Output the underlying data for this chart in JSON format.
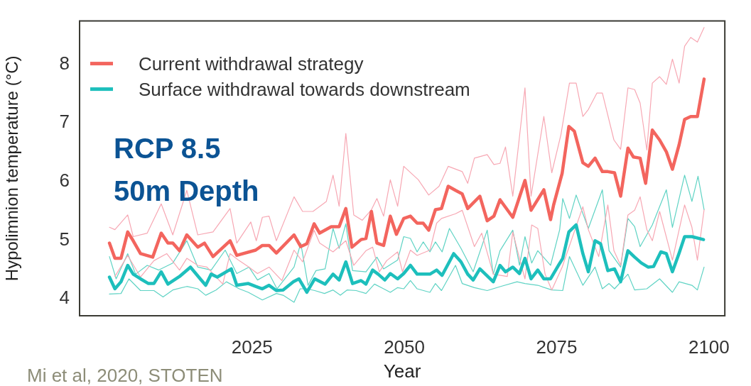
{
  "chart_data": {
    "type": "line",
    "xlabel": "Year",
    "ylabel": "Hypolimnion temperature (°C)",
    "xlim": [
      1996.7,
      2102.6
    ],
    "ylim": [
      3.71,
      8.74
    ],
    "xticks": [
      2025,
      2050,
      2075,
      2100
    ],
    "yticks": [
      4,
      5,
      6,
      7,
      8
    ],
    "grid": false,
    "legend": "top left",
    "marker": "none",
    "line_style": "solid",
    "annotations": [
      "RCP 8.5",
      "50m Depth",
      "Mi et al, 2020, STOTEN"
    ],
    "series": [
      {
        "color": "#f7a7b3",
        "x": [
          2001.6,
          2002.5,
          2004.6,
          2005.5,
          2007.8,
          2010.1,
          2012,
          2014.3,
          2016.1,
          2018.6,
          2021.4,
          2022.5,
          2024.8,
          2025.7,
          2026.7,
          2027.8,
          2029,
          2031.9,
          2033.3,
          2035,
          2037.2,
          2038.3,
          2039.3,
          2040.4,
          2041.7,
          2043.1,
          2044.6,
          2045.5,
          2046.6,
          2047.7,
          2048.9,
          2049.9,
          2052.3,
          2054,
          2055.7,
          2057.2,
          2059.5,
          2060.4,
          2061.5,
          2063.6,
          2064.7,
          2065.7,
          2066.6,
          2067.8,
          2069.8,
          2070.8,
          2072.9,
          2074.2,
          2075.7,
          2077.1,
          2078.2,
          2079.3,
          2080.2,
          2081.6,
          2082.5,
          2084.4,
          2085.5,
          2086.7,
          2087.8,
          2088.7,
          2089.8,
          2090.7,
          2091.9,
          2093,
          2094,
          2095.1,
          2096,
          2097,
          2098.1,
          2099.2
        ],
        "values": [
          5.22,
          5.18,
          5.43,
          5.06,
          5.12,
          5.62,
          5.09,
          5.85,
          5.09,
          5.14,
          5.54,
          4.95,
          5.31,
          4.99,
          5.39,
          5.41,
          4.99,
          5.74,
          5.49,
          5.49,
          5.66,
          6.11,
          5.58,
          6.82,
          5.43,
          5.34,
          5.52,
          5.71,
          5.41,
          6.03,
          5.58,
          6.26,
          6.03,
          5.77,
          5.92,
          6.26,
          6.17,
          5.97,
          6.4,
          6.46,
          6.29,
          6.31,
          6.59,
          5.75,
          7.6,
          5.75,
          7.11,
          6.15,
          6.8,
          7.68,
          7.68,
          7.11,
          7.23,
          7.51,
          7.51,
          6.71,
          6.55,
          7.6,
          7.57,
          7.34,
          6.54,
          7.68,
          7.79,
          7.66,
          8.09,
          7.68,
          8.31,
          8.46,
          8.38,
          8.63
        ]
      },
      {
        "color": "#f7a7b3",
        "x": [
          2002.5,
          2004.6,
          2006.7,
          2008.9,
          2011,
          2013.1,
          2014.3,
          2016.1,
          2017.6,
          2020.2,
          2021.4,
          2022.9,
          2024.5,
          2025.9,
          2027.8,
          2029.9,
          2031.9,
          2033.3,
          2035.2,
          2036.1,
          2038.3,
          2040.4,
          2041.7,
          2043.7,
          2044.8,
          2045.9,
          2047.1,
          2048.9,
          2049.7,
          2051,
          2052.1,
          2054.2,
          2055.3,
          2056.1,
          2058.4,
          2059.5,
          2061.5,
          2062.7,
          2064.6,
          2066.9,
          2067.8,
          2068.9,
          2069.8,
          2070.9,
          2071.9,
          2073.1,
          2074.2,
          2075.9,
          2079.3,
          2080.2,
          2081.9,
          2083.4,
          2084.4,
          2085.5,
          2086.7,
          2087.8,
          2088.7,
          2089.8,
          2090.7,
          2091.9,
          2094,
          2096,
          2097.2,
          2098.1,
          2099.2
        ],
        "values": [
          4.38,
          4.74,
          4.37,
          4.65,
          4.77,
          4.49,
          4.69,
          4.57,
          4.54,
          4.25,
          4.77,
          4.65,
          4.54,
          4.43,
          4.54,
          4.31,
          4.83,
          4.63,
          5.17,
          4.95,
          4.8,
          4.99,
          4.57,
          4.82,
          4.88,
          4.46,
          4.65,
          4.8,
          4.46,
          4.83,
          4.74,
          4.83,
          5.29,
          5.37,
          5.45,
          5.51,
          4.89,
          5.12,
          4.42,
          4.38,
          5.14,
          4.69,
          4.34,
          5.26,
          5.2,
          4.42,
          4.15,
          4.54,
          5.57,
          5.18,
          4.72,
          5.6,
          4.82,
          4.57,
          5.43,
          5.51,
          5.74,
          5.18,
          4.99,
          5.49,
          4.66,
          5.6,
          5.22,
          4.66,
          5.52
        ]
      },
      {
        "color": "#5fd3c4",
        "x": [
          2001.6,
          2002.7,
          2004.6,
          2005.9,
          2007.8,
          2009.7,
          2012,
          2014.3,
          2016.1,
          2018.3,
          2020.6,
          2022.5,
          2024.5,
          2025.9,
          2027.8,
          2029.1,
          2031.9,
          2033,
          2034.2,
          2035.5,
          2037,
          2038.3,
          2039.3,
          2040.4,
          2041.5,
          2043.7,
          2045.5,
          2046.6,
          2048.9,
          2049.9,
          2051,
          2052.1,
          2053.1,
          2054.2,
          2055.1,
          2056.2,
          2057.4,
          2059.3,
          2061.3,
          2063.6,
          2064.6,
          2065.7,
          2067.8,
          2068.9,
          2069.8,
          2070.9,
          2071.9,
          2074,
          2075.5,
          2076,
          2077.1,
          2078.2,
          2080.2,
          2082.5,
          2083.6,
          2085.5,
          2086.7,
          2087.8,
          2088.7,
          2090.7,
          2093,
          2094,
          2096,
          2097.2,
          2098.2,
          2099.2
        ],
        "values": [
          4.72,
          4.34,
          4.77,
          4.42,
          4.57,
          4.49,
          4.61,
          4.99,
          4.54,
          4.49,
          4.83,
          4.43,
          4.54,
          4.32,
          4.43,
          4.17,
          4.54,
          4.95,
          4.23,
          4.48,
          4.51,
          5.2,
          4.86,
          5.28,
          4.48,
          4.46,
          4.71,
          4.51,
          4.66,
          5.06,
          5.03,
          4.8,
          4.97,
          4.8,
          4.97,
          4.8,
          5.2,
          4.86,
          4.46,
          5.17,
          4.42,
          4.82,
          5.17,
          4.57,
          5.06,
          4.61,
          4.82,
          4.57,
          5.18,
          5.71,
          5.37,
          5.77,
          5.2,
          5.86,
          4.82,
          4.54,
          5.37,
          5.23,
          4.89,
          5.26,
          5.86,
          5.22,
          6.11,
          5.66,
          6.09,
          5.52
        ]
      },
      {
        "color": "#5fd3c4",
        "x": [
          2001.6,
          2003.5,
          2004.8,
          2006.7,
          2008.9,
          2010.4,
          2012,
          2014.3,
          2016.1,
          2017.4,
          2019.1,
          2020.8,
          2022.9,
          2024.4,
          2026.7,
          2029,
          2030.1,
          2031.9,
          2032.9,
          2034,
          2035.3,
          2036.9,
          2038.3,
          2039.5,
          2040.6,
          2042.1,
          2043.7,
          2045.1,
          2046.6,
          2047.7,
          2048.9,
          2049.9,
          2051,
          2052.1,
          2054.2,
          2055.1,
          2056.1,
          2058.4,
          2059.5,
          2061.5,
          2063.6,
          2065.8,
          2068.5,
          2069.8,
          2071.9,
          2074.2,
          2076,
          2077.1,
          2079.3,
          2081.3,
          2082.5,
          2083.6,
          2084.5,
          2086.7,
          2087.8,
          2089.8,
          2091.9,
          2094,
          2095.1,
          2097.2,
          2098.1,
          2099.2
        ],
        "values": [
          4.08,
          4.09,
          4.34,
          4.14,
          4.14,
          4.03,
          4.15,
          4.21,
          4.17,
          4.06,
          4.15,
          4.29,
          4.17,
          4.11,
          3.98,
          4.09,
          4.06,
          3.94,
          4.17,
          4.17,
          4.14,
          4.09,
          4.15,
          4.06,
          4.15,
          4.14,
          4.09,
          4.25,
          4.17,
          4.11,
          4.19,
          4.17,
          4.31,
          4.17,
          4.11,
          4.26,
          4.14,
          4.57,
          4.26,
          4.19,
          4.14,
          4.21,
          4.29,
          4.26,
          4.23,
          4.15,
          4.14,
          4.72,
          4.23,
          4.54,
          4.17,
          4.26,
          4.17,
          4.42,
          4.15,
          4.17,
          4.34,
          4.11,
          4.29,
          4.23,
          4.15,
          4.54
        ]
      },
      {
        "name": "Current withdrawal strategy",
        "color": "#f3655e",
        "x": [
          2001.6,
          2002.5,
          2003.5,
          2004.6,
          2005.5,
          2006.7,
          2008.7,
          2010.1,
          2011.2,
          2012,
          2013.1,
          2014.3,
          2016.1,
          2017.2,
          2018.6,
          2021.4,
          2022.5,
          2025.6,
          2026.7,
          2027.8,
          2029,
          2031.9,
          2033,
          2034,
          2035.2,
          2036.1,
          2038,
          2039.3,
          2040.4,
          2041.4,
          2042.9,
          2043.7,
          2044.6,
          2045.5,
          2046.6,
          2047.7,
          2048.7,
          2049.9,
          2051,
          2052.1,
          2053.1,
          2054,
          2055.1,
          2056.1,
          2057.2,
          2058.4,
          2059.5,
          2060.4,
          2062.4,
          2063.6,
          2064.7,
          2065.7,
          2067.8,
          2069.8,
          2070.8,
          2072.9,
          2074,
          2074.5,
          2075.9,
          2077,
          2077.9,
          2079.3,
          2080.2,
          2081.3,
          2082.5,
          2083.4,
          2084.5,
          2085.5,
          2086.7,
          2087.6,
          2088.7,
          2089.6,
          2090.7,
          2091.9,
          2093,
          2094,
          2095.1,
          2096,
          2097,
          2098.1,
          2099.2
        ],
        "values": [
          4.95,
          4.69,
          4.69,
          5.14,
          4.99,
          4.77,
          4.71,
          5.12,
          4.95,
          4.95,
          4.82,
          5.09,
          4.88,
          4.95,
          4.72,
          4.99,
          4.74,
          4.83,
          4.91,
          4.91,
          4.78,
          5.09,
          4.89,
          4.94,
          5.28,
          5.12,
          5.23,
          5.23,
          5.54,
          4.88,
          5.01,
          5.03,
          5.49,
          4.95,
          4.91,
          5.41,
          5.1,
          5.37,
          5.41,
          5.29,
          5.29,
          5.17,
          5.52,
          5.54,
          5.92,
          5.85,
          5.79,
          5.54,
          5.75,
          5.33,
          5.41,
          5.69,
          5.39,
          6.02,
          5.51,
          5.86,
          5.35,
          5.6,
          6.14,
          6.94,
          6.86,
          6.32,
          6.26,
          6.4,
          6.17,
          6.17,
          6.15,
          5.75,
          6.57,
          6.42,
          6.4,
          5.97,
          6.88,
          6.71,
          6.51,
          6.21,
          6.63,
          7.06,
          7.11,
          7.11,
          7.75
        ]
      },
      {
        "name": "Surface withdrawal towards downstream",
        "color": "#1dbfbc",
        "x": [
          2001.6,
          2002.5,
          2003.5,
          2004.6,
          2005.5,
          2006.7,
          2008,
          2008.9,
          2010.1,
          2011.2,
          2013.1,
          2014.9,
          2016.5,
          2017.4,
          2018.3,
          2019.3,
          2021.6,
          2022.5,
          2024.4,
          2025.6,
          2026.7,
          2027.8,
          2029,
          2030.1,
          2031.8,
          2032.7,
          2034,
          2035.3,
          2037,
          2038.3,
          2039.3,
          2040.4,
          2041.5,
          2042.9,
          2043.7,
          2044.8,
          2045.7,
          2046.8,
          2047.7,
          2048.9,
          2049.9,
          2051,
          2052.1,
          2054.2,
          2055.3,
          2056.2,
          2058.1,
          2059.3,
          2060.4,
          2061.3,
          2062.4,
          2064.6,
          2065.7,
          2066.6,
          2067.8,
          2068.9,
          2069.8,
          2070.8,
          2071.9,
          2072.9,
          2074,
          2075.3,
          2076,
          2077,
          2078.2,
          2079.3,
          2080.2,
          2081.3,
          2082.2,
          2083.4,
          2084.5,
          2085.5,
          2086.7,
          2087.8,
          2088.9,
          2090,
          2090.9,
          2092.1,
          2093,
          2094,
          2095.1,
          2096,
          2097.2,
          2099.1
        ],
        "values": [
          4.37,
          4.17,
          4.29,
          4.57,
          4.42,
          4.34,
          4.26,
          4.26,
          4.46,
          4.25,
          4.38,
          4.54,
          4.34,
          4.23,
          4.42,
          4.37,
          4.51,
          4.23,
          4.26,
          4.21,
          4.17,
          4.23,
          4.14,
          4.15,
          4.29,
          4.34,
          4.11,
          4.34,
          4.25,
          4.42,
          4.32,
          4.63,
          4.26,
          4.31,
          4.25,
          4.49,
          4.42,
          4.32,
          4.43,
          4.34,
          4.43,
          4.57,
          4.42,
          4.42,
          4.49,
          4.4,
          4.77,
          4.63,
          4.42,
          4.32,
          4.51,
          4.29,
          4.57,
          4.46,
          4.54,
          4.43,
          4.69,
          4.34,
          4.49,
          4.34,
          4.34,
          4.57,
          4.69,
          5.14,
          5.26,
          4.77,
          4.46,
          4.99,
          4.94,
          4.48,
          4.51,
          4.29,
          4.82,
          4.71,
          4.61,
          4.54,
          4.55,
          4.8,
          4.77,
          4.46,
          4.78,
          5.06,
          5.06,
          5.01
        ]
      }
    ]
  }
}
